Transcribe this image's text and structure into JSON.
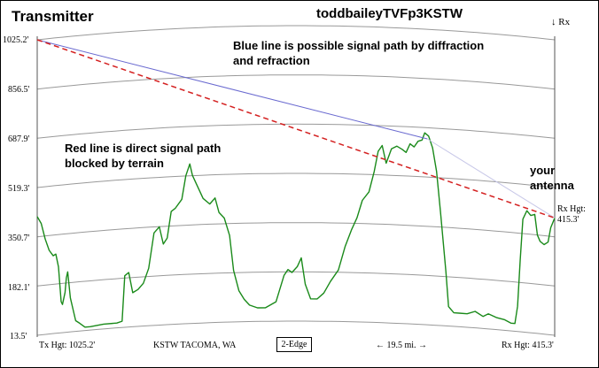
{
  "header": {
    "transmitter_label": "Transmitter",
    "callsign_title": "toddbaileyTVFp3KSTW",
    "rx_marker": "↓ Rx"
  },
  "y_axis_ticks": [
    "1025.2'",
    "856.5'",
    "687.9'",
    "519.3'",
    "350.7'",
    "182.1'",
    "13.5'"
  ],
  "annotations": {
    "blue_line_note": "Blue line is possible signal path by diffraction and refraction",
    "red_line_note": "Red line is direct signal path blocked by terrain",
    "antenna_note": "your antenna",
    "rx_height_label": "Rx Hgt:",
    "rx_height_value": "415.3'"
  },
  "footer": {
    "tx_height": "Tx Hgt: 1025.2'",
    "station": "KSTW TACOMA, WA",
    "edge_mode": "2-Edge",
    "distance": "← 19.5 mi. →",
    "rx_height": "Rx Hgt: 415.3'"
  },
  "colors": {
    "terrain": "#1a8a1a",
    "direct_path": "#d42020",
    "diffraction_path": "#6a6ad0",
    "earth_curve": "#999999"
  },
  "profile": {
    "y_range_ft": [
      13.5,
      1025.2
    ],
    "distance_mi": 19.5,
    "tx_height_ft": 1025.2,
    "rx_height_ft": 415.3,
    "diffraction_peak": {
      "mi": 14.7,
      "ft": 650
    },
    "terrain_ft": [
      [
        0.0,
        420
      ],
      [
        0.15,
        395
      ],
      [
        0.3,
        340
      ],
      [
        0.45,
        300
      ],
      [
        0.6,
        280
      ],
      [
        0.7,
        285
      ],
      [
        0.8,
        240
      ],
      [
        0.9,
        120
      ],
      [
        0.95,
        110
      ],
      [
        1.05,
        150
      ],
      [
        1.1,
        200
      ],
      [
        1.15,
        220
      ],
      [
        1.25,
        130
      ],
      [
        1.35,
        90
      ],
      [
        1.45,
        50
      ],
      [
        1.6,
        40
      ],
      [
        1.8,
        25
      ],
      [
        2.0,
        25
      ],
      [
        2.5,
        30
      ],
      [
        3.0,
        30
      ],
      [
        3.2,
        35
      ],
      [
        3.3,
        190
      ],
      [
        3.45,
        200
      ],
      [
        3.6,
        130
      ],
      [
        3.8,
        140
      ],
      [
        4.0,
        160
      ],
      [
        4.2,
        210
      ],
      [
        4.4,
        330
      ],
      [
        4.6,
        350
      ],
      [
        4.75,
        290
      ],
      [
        4.9,
        310
      ],
      [
        5.05,
        400
      ],
      [
        5.2,
        410
      ],
      [
        5.45,
        440
      ],
      [
        5.6,
        520
      ],
      [
        5.75,
        560
      ],
      [
        5.85,
        520
      ],
      [
        6.05,
        480
      ],
      [
        6.25,
        440
      ],
      [
        6.5,
        420
      ],
      [
        6.7,
        440
      ],
      [
        6.85,
        390
      ],
      [
        7.05,
        370
      ],
      [
        7.25,
        310
      ],
      [
        7.4,
        190
      ],
      [
        7.6,
        120
      ],
      [
        7.8,
        90
      ],
      [
        8.0,
        70
      ],
      [
        8.3,
        60
      ],
      [
        8.6,
        60
      ],
      [
        9.0,
        80
      ],
      [
        9.2,
        140
      ],
      [
        9.3,
        170
      ],
      [
        9.45,
        190
      ],
      [
        9.6,
        180
      ],
      [
        9.8,
        200
      ],
      [
        9.95,
        230
      ],
      [
        10.1,
        140
      ],
      [
        10.3,
        90
      ],
      [
        10.55,
        90
      ],
      [
        10.8,
        110
      ],
      [
        11.05,
        150
      ],
      [
        11.35,
        190
      ],
      [
        11.6,
        270
      ],
      [
        11.85,
        330
      ],
      [
        12.05,
        370
      ],
      [
        12.25,
        430
      ],
      [
        12.5,
        460
      ],
      [
        12.7,
        530
      ],
      [
        12.85,
        600
      ],
      [
        13.0,
        620
      ],
      [
        13.15,
        560
      ],
      [
        13.35,
        610
      ],
      [
        13.55,
        620
      ],
      [
        13.75,
        610
      ],
      [
        13.9,
        600
      ],
      [
        14.05,
        630
      ],
      [
        14.2,
        620
      ],
      [
        14.35,
        640
      ],
      [
        14.5,
        645
      ],
      [
        14.6,
        670
      ],
      [
        14.75,
        660
      ],
      [
        14.9,
        620
      ],
      [
        15.05,
        540
      ],
      [
        15.2,
        400
      ],
      [
        15.4,
        200
      ],
      [
        15.5,
        80
      ],
      [
        15.7,
        60
      ],
      [
        15.9,
        60
      ],
      [
        16.2,
        60
      ],
      [
        16.5,
        70
      ],
      [
        16.8,
        55
      ],
      [
        17.0,
        65
      ],
      [
        17.3,
        55
      ],
      [
        17.6,
        50
      ],
      [
        17.85,
        40
      ],
      [
        18.0,
        40
      ],
      [
        18.1,
        100
      ],
      [
        18.2,
        260
      ],
      [
        18.3,
        400
      ],
      [
        18.45,
        430
      ],
      [
        18.6,
        415
      ],
      [
        18.75,
        420
      ],
      [
        18.85,
        350
      ],
      [
        18.95,
        330
      ],
      [
        19.1,
        320
      ],
      [
        19.25,
        330
      ],
      [
        19.35,
        380
      ],
      [
        19.5,
        415.3
      ]
    ]
  }
}
